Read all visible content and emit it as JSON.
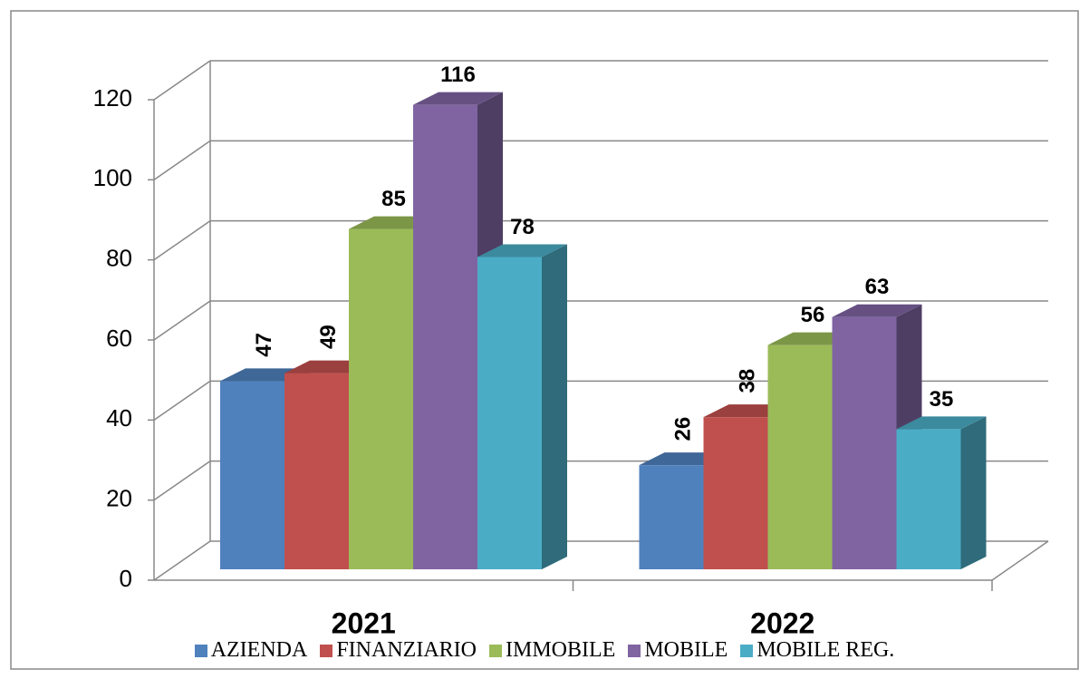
{
  "chart_data": {
    "type": "bar3d",
    "categories": [
      "2021",
      "2022"
    ],
    "series": [
      {
        "name": "AZIENDA",
        "color": "#4f81bd",
        "values": [
          47,
          26
        ]
      },
      {
        "name": "FINANZIARIO",
        "color": "#c0504d",
        "values": [
          49,
          38
        ]
      },
      {
        "name": "IMMOBILE",
        "color": "#9bbb59",
        "values": [
          85,
          56
        ]
      },
      {
        "name": "MOBILE",
        "color": "#8064a2",
        "values": [
          116,
          63
        ]
      },
      {
        "name": "MOBILE REG.",
        "color": "#4bacc6",
        "values": [
          78,
          35
        ]
      }
    ],
    "ylim": [
      0,
      120
    ],
    "yticks": [
      0,
      20,
      40,
      60,
      80,
      100,
      120
    ],
    "grid": true,
    "legend": "bottom"
  }
}
